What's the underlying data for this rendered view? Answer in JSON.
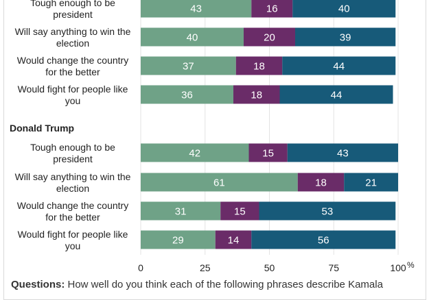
{
  "chart_data": {
    "type": "bar",
    "orientation": "horizontal",
    "stacked": true,
    "colors": [
      "#6fa287",
      "#6a2c68",
      "#175a79"
    ],
    "xlim": [
      0,
      100
    ],
    "x_ticks": [
      "0",
      "25",
      "50",
      "75",
      "100"
    ],
    "x_unit": "%",
    "groups": [
      {
        "label": "",
        "rows": [
          {
            "label": [
              "Tough enough to be",
              "president"
            ],
            "values": [
              43,
              16,
              40
            ]
          },
          {
            "label": [
              "Will say anything to win the",
              "election"
            ],
            "values": [
              40,
              20,
              39
            ]
          },
          {
            "label": [
              "Would change the country",
              "for the better"
            ],
            "values": [
              37,
              18,
              44
            ]
          },
          {
            "label": [
              "Would fight for people like",
              "you"
            ],
            "values": [
              36,
              18,
              44
            ]
          }
        ]
      },
      {
        "label": "Donald Trump",
        "rows": [
          {
            "label": [
              "Tough enough to be",
              "president"
            ],
            "values": [
              42,
              15,
              43
            ]
          },
          {
            "label": [
              "Will say anything to win the",
              "election"
            ],
            "values": [
              61,
              18,
              21
            ]
          },
          {
            "label": [
              "Would change the country",
              "for the better"
            ],
            "values": [
              31,
              15,
              53
            ]
          },
          {
            "label": [
              "Would fight for people like",
              "you"
            ],
            "values": [
              29,
              14,
              56
            ]
          }
        ]
      }
    ]
  },
  "footnote": {
    "label": "Questions:",
    "text": " How well do you think each of the following phrases describe Kamala"
  }
}
